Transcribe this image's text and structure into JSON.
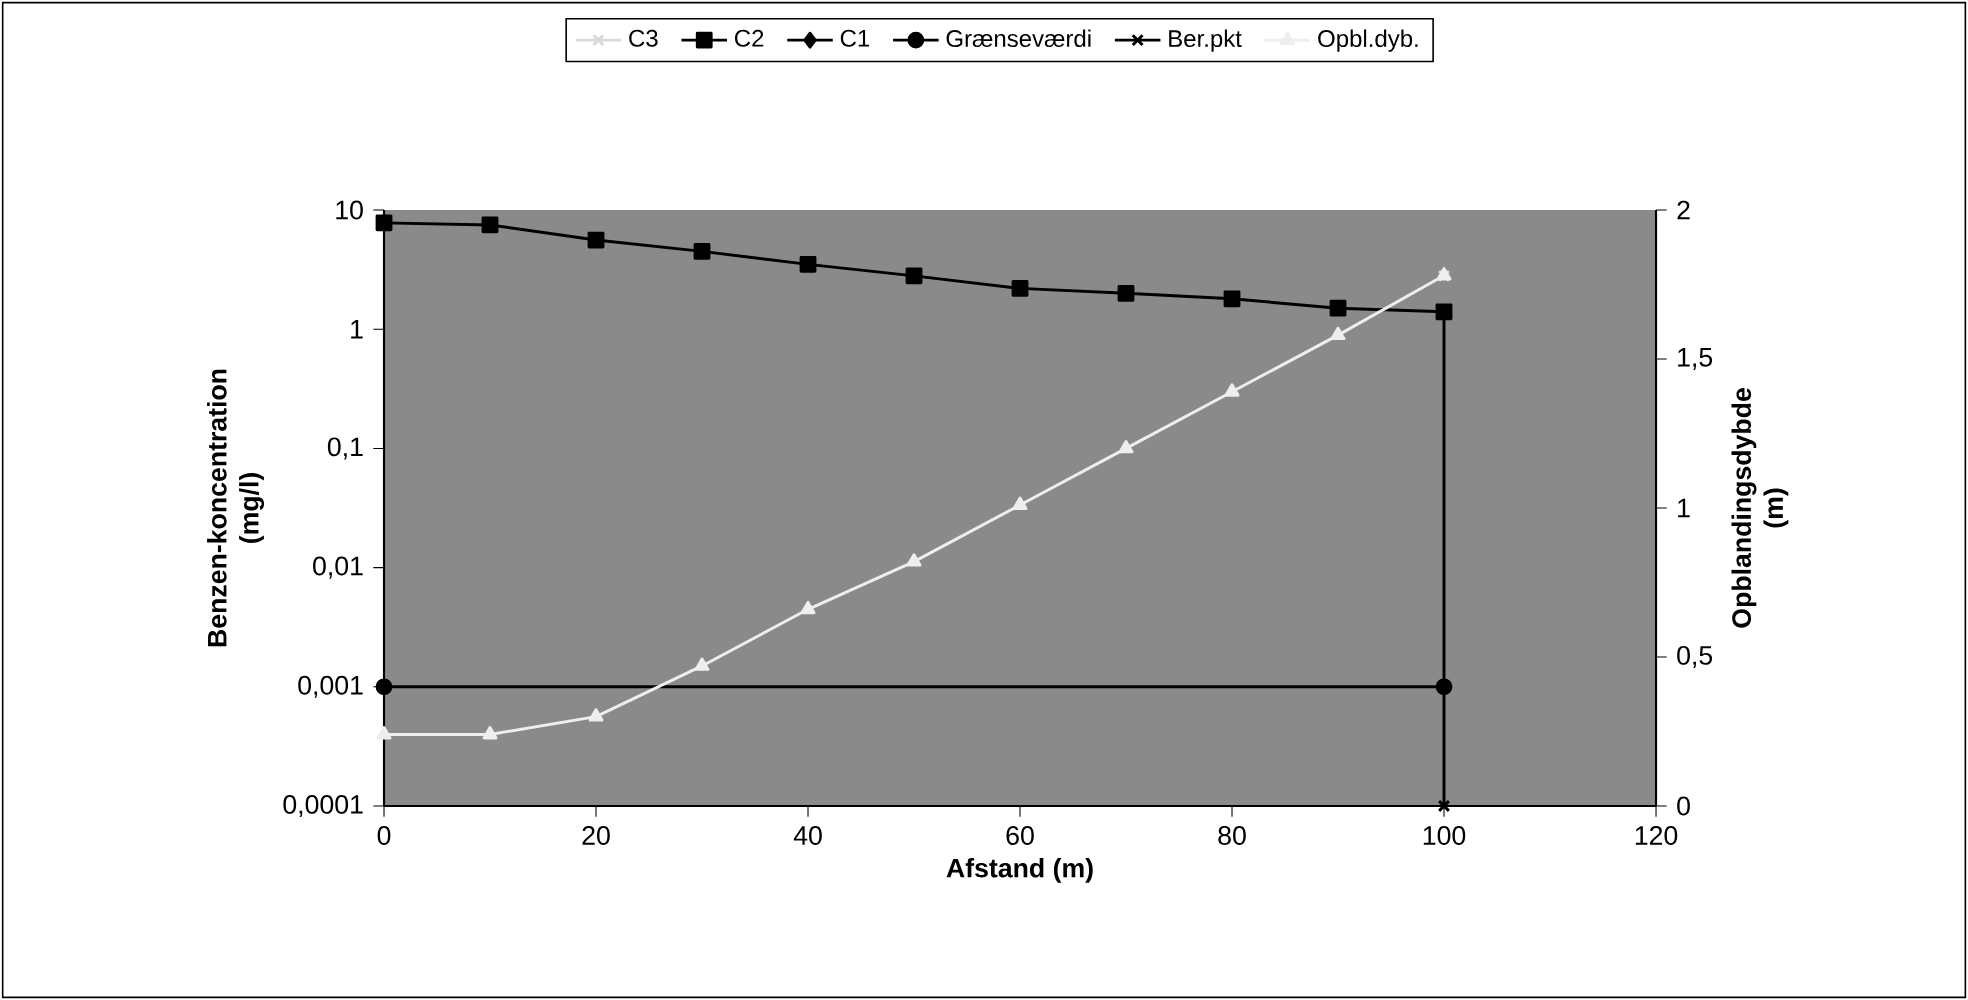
{
  "chart_data": {
    "type": "line",
    "xlabel": "Afstand (m)",
    "ylabel": "Benzen-koncentration (mg/l)",
    "y2label": "Opblandingsdybde (m)",
    "xlim": [
      0,
      120
    ],
    "xticks": [
      0,
      20,
      40,
      60,
      80,
      100,
      120
    ],
    "ylim": [
      0.0001,
      10
    ],
    "yticks": [
      {
        "value": 0.0001,
        "label": "0,0001"
      },
      {
        "value": 0.001,
        "label": "0,001"
      },
      {
        "value": 0.01,
        "label": "0,01"
      },
      {
        "value": 0.1,
        "label": "0,1"
      },
      1,
      10
    ],
    "y2lim": [
      0,
      2
    ],
    "y2ticks": [
      0,
      {
        "value": 0.5,
        "label": "0,5"
      },
      1,
      {
        "value": 1.5,
        "label": "1,5"
      },
      2
    ],
    "log": "y",
    "legend": "top",
    "line_style": "solid",
    "series": [
      {
        "name": "C3",
        "color": "#d9d9d9",
        "marker": "cross",
        "x": [
          100
        ],
        "values": [
          2.8
        ]
      },
      {
        "name": "C2",
        "color": "#000000",
        "marker": "square",
        "x": [
          0,
          10,
          20,
          30,
          40,
          50,
          60,
          70,
          80,
          90,
          100
        ],
        "values": [
          7.8,
          7.5,
          5.6,
          4.5,
          3.5,
          2.8,
          2.2,
          2.0,
          1.8,
          1.5,
          1.4
        ]
      },
      {
        "name": "C1",
        "color": "#000000",
        "marker": "diamond",
        "values": [
          null,
          null,
          null,
          null,
          null,
          null,
          null,
          null,
          null,
          null,
          null
        ]
      },
      {
        "name": "Grænseværdi",
        "color": "#000000",
        "marker": "circle",
        "x": [
          0,
          100
        ],
        "values": [
          0.001,
          0.001
        ]
      },
      {
        "name": "Ber.pkt",
        "color": "#000000",
        "marker": "cross",
        "x": [
          100,
          100
        ],
        "values": [
          0.0001,
          1.4
        ]
      },
      {
        "name": "Opbl.dyb.",
        "color": "#eeeeee",
        "marker": "triangle",
        "axis": "y2",
        "x": [
          0,
          10,
          20,
          30,
          40,
          50,
          60,
          70,
          80,
          90,
          100
        ],
        "values": [
          0.24,
          0.24,
          0.3,
          0.47,
          0.66,
          0.82,
          1.01,
          1.2,
          1.39,
          1.58,
          1.78
        ]
      }
    ]
  }
}
